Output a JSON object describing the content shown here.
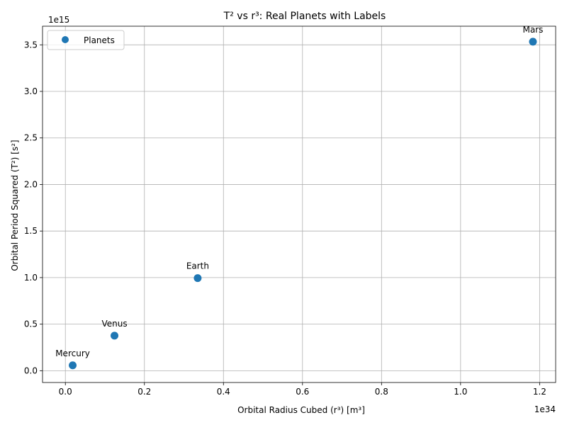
{
  "chart_data": {
    "type": "scatter",
    "title": "T² vs r³: Real Planets with Labels",
    "xlabel": "Orbital Radius Cubed (r³) [m³]",
    "ylabel": "Orbital Period Squared (T²) [s²]",
    "x_offset_label": "1e34",
    "y_offset_label": "1e15",
    "xlim": [
      -0.0578,
      1.2406
    ],
    "ylim": [
      -0.1266,
      3.7
    ],
    "x_ticks": [
      0.0,
      0.2,
      0.4,
      0.6,
      0.8,
      1.0,
      1.2
    ],
    "x_tick_labels": [
      "0.0",
      "0.2",
      "0.4",
      "0.6",
      "0.8",
      "1.0",
      "1.2"
    ],
    "y_ticks": [
      0.0,
      0.5,
      1.0,
      1.5,
      2.0,
      2.5,
      3.0,
      3.5
    ],
    "y_tick_labels": [
      "0.0",
      "0.5",
      "1.0",
      "1.5",
      "2.0",
      "2.5",
      "3.0",
      "3.5"
    ],
    "grid": true,
    "legend_position": "upper-left",
    "series": [
      {
        "name": "Planets",
        "color": "#1f77b4",
        "points": [
          {
            "label": "Mercury",
            "x": 0.0185,
            "y": 0.0577
          },
          {
            "label": "Venus",
            "x": 0.1243,
            "y": 0.3768
          },
          {
            "label": "Earth",
            "x": 0.3348,
            "y": 0.9943
          },
          {
            "label": "Mars",
            "x": 1.1831,
            "y": 3.5336
          }
        ]
      }
    ]
  }
}
